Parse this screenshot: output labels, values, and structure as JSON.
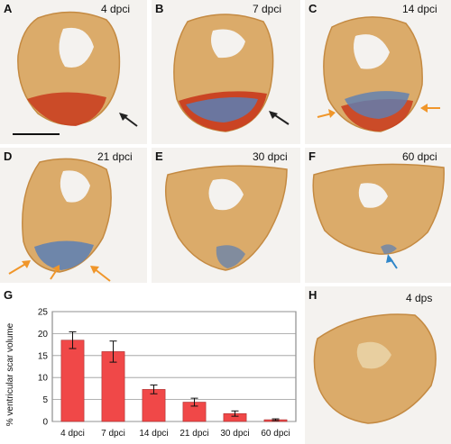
{
  "panels": [
    {
      "id": "A",
      "label": "A",
      "time": "4 dpci"
    },
    {
      "id": "B",
      "label": "B",
      "time": "7 dpci"
    },
    {
      "id": "C",
      "label": "C",
      "time": "14 dpci"
    },
    {
      "id": "D",
      "label": "D",
      "time": "21 dpci"
    },
    {
      "id": "E",
      "label": "E",
      "time": "30 dpci"
    },
    {
      "id": "F",
      "label": "F",
      "time": "60 dpci"
    },
    {
      "id": "H",
      "label": "H",
      "time": "4 dps"
    }
  ],
  "chart_label": "G",
  "colors": {
    "tissue": "#d9a35a",
    "fibrin": "#c8391c",
    "collagen": "#5b7fb5",
    "bar": "#f04848",
    "arrow_black": "#222222",
    "arrow_orange": "#f0962a",
    "arrow_blue": "#2f86c9"
  },
  "chart_data": {
    "type": "bar",
    "categories": [
      "4 dpci",
      "7 dpci",
      "14 dpci",
      "21 dpci",
      "30 dpci",
      "60 dpci"
    ],
    "values": [
      18.5,
      15.9,
      7.3,
      4.4,
      1.8,
      0.4
    ],
    "errors": [
      1.9,
      2.4,
      1.0,
      0.9,
      0.6,
      0.2
    ],
    "ylabel": "% ventricular scar volume",
    "ylim": [
      0,
      25
    ],
    "yticks": [
      0,
      5,
      10,
      15,
      20,
      25
    ],
    "grid": true
  }
}
